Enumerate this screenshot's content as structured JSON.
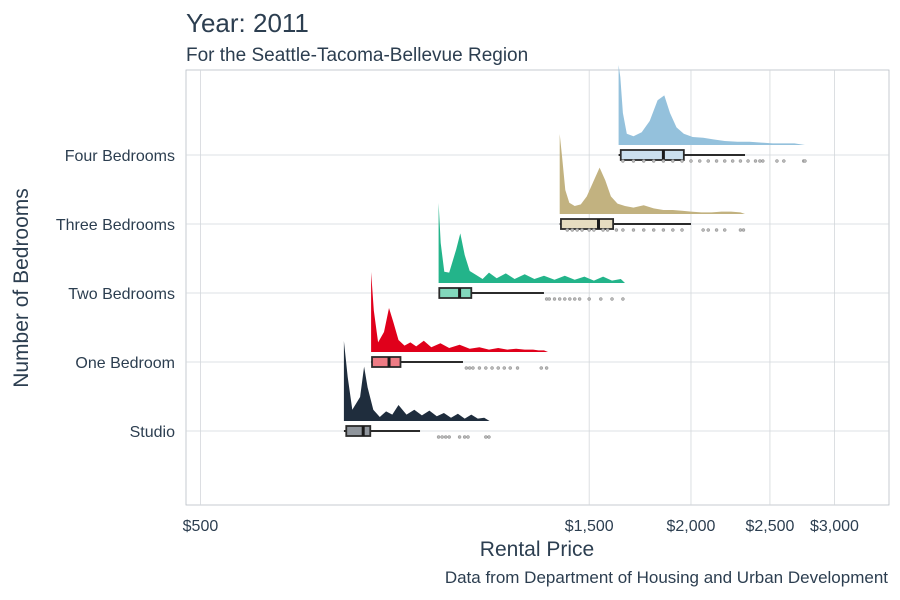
{
  "chart_data": {
    "type": "raincloud",
    "title": "Year: 2011",
    "subtitle": "For the Seattle-Tacoma-Bellevue Region",
    "caption": "Data from Department of Housing and Urban Development",
    "xlabel": "Rental Price",
    "ylabel": "Number of Bedrooms",
    "x_scale": "log10",
    "xlim": [
      480,
      3500
    ],
    "x_ticks": [
      500,
      1500,
      2000,
      2500,
      3000
    ],
    "x_tick_labels": [
      "$500",
      "$1,500",
      "$2,000",
      "$2,500",
      "$3,000"
    ],
    "grid": true,
    "categories": [
      "Studio",
      "One Bedroom",
      "Two Bedrooms",
      "Three Bedrooms",
      "Four Bedrooms"
    ],
    "series": [
      {
        "category": "Studio",
        "color": "#1f2d3d",
        "box_fill": "#8f959c",
        "min": 750,
        "q1": 755,
        "median": 792,
        "q3": 808,
        "max": 930,
        "outliers": [
          980,
          990,
          1000,
          1010,
          1040,
          1055,
          1065,
          1120,
          1130
        ],
        "density_x": [
          750,
          750,
          758,
          768,
          785,
          794,
          802,
          815,
          830,
          845,
          860,
          875,
          895,
          915,
          935,
          955,
          975,
          995,
          1015,
          1035,
          1055,
          1075,
          1095,
          1115,
          1132
        ],
        "density_y": [
          0.0,
          1.0,
          0.55,
          0.14,
          0.3,
          0.68,
          0.42,
          0.14,
          0.05,
          0.12,
          0.08,
          0.2,
          0.08,
          0.14,
          0.07,
          0.13,
          0.06,
          0.1,
          0.04,
          0.09,
          0.03,
          0.08,
          0.03,
          0.04,
          0.0
        ]
      },
      {
        "category": "One Bedroom",
        "color": "#e0001b",
        "box_fill": "#ee7c85",
        "min": 810,
        "q1": 812,
        "median": 852,
        "q3": 880,
        "max": 1050,
        "outliers": [
          1060,
          1070,
          1080,
          1100,
          1120,
          1140,
          1160,
          1180,
          1200,
          1225,
          1310,
          1330
        ],
        "density_x": [
          810,
          810,
          816,
          826,
          840,
          852,
          862,
          875,
          890,
          905,
          920,
          940,
          960,
          985,
          1010,
          1040,
          1070,
          1100,
          1130,
          1160,
          1190,
          1220,
          1250,
          1280,
          1300,
          1320,
          1335
        ],
        "density_y": [
          0.0,
          1.0,
          0.52,
          0.12,
          0.25,
          0.55,
          0.38,
          0.15,
          0.08,
          0.12,
          0.07,
          0.14,
          0.06,
          0.11,
          0.05,
          0.09,
          0.04,
          0.06,
          0.03,
          0.05,
          0.03,
          0.04,
          0.03,
          0.03,
          0.02,
          0.02,
          0.0
        ]
      },
      {
        "category": "Two Bedrooms",
        "color": "#23b48a",
        "box_fill": "#82d8bc",
        "min": 980,
        "q1": 982,
        "median": 1040,
        "q3": 1075,
        "max": 1320,
        "outliers": [
          1330,
          1340,
          1360,
          1380,
          1400,
          1420,
          1440,
          1460,
          1500,
          1550,
          1600,
          1650
        ],
        "density_x": [
          980,
          980,
          986,
          996,
          1010,
          1030,
          1042,
          1055,
          1070,
          1090,
          1110,
          1130,
          1155,
          1185,
          1215,
          1250,
          1285,
          1320,
          1360,
          1400,
          1440,
          1480,
          1520,
          1560,
          1600,
          1640,
          1660
        ],
        "density_y": [
          0.0,
          1.0,
          0.5,
          0.14,
          0.13,
          0.42,
          0.62,
          0.35,
          0.15,
          0.1,
          0.05,
          0.13,
          0.06,
          0.12,
          0.05,
          0.11,
          0.05,
          0.09,
          0.04,
          0.09,
          0.04,
          0.08,
          0.03,
          0.08,
          0.03,
          0.05,
          0.0
        ]
      },
      {
        "category": "Three Bedrooms",
        "color": "#c2b280",
        "box_fill": "#e6dcc0",
        "min": 1380,
        "q1": 1385,
        "median": 1540,
        "q3": 1605,
        "max": 2000,
        "outliers": [
          1410,
          1430,
          1450,
          1470,
          1500,
          1520,
          1560,
          1580,
          1620,
          1650,
          1700,
          1750,
          1800,
          1850,
          1900,
          1950,
          2070,
          2100,
          2150,
          2200,
          2300,
          2320
        ],
        "density_x": [
          1380,
          1380,
          1390,
          1402,
          1418,
          1440,
          1465,
          1490,
          1520,
          1545,
          1570,
          1595,
          1625,
          1660,
          1700,
          1750,
          1800,
          1850,
          1900,
          1950,
          2000,
          2060,
          2120,
          2180,
          2240,
          2300,
          2330
        ],
        "density_y": [
          0.0,
          1.0,
          0.7,
          0.3,
          0.14,
          0.1,
          0.12,
          0.22,
          0.42,
          0.58,
          0.42,
          0.22,
          0.13,
          0.1,
          0.08,
          0.11,
          0.07,
          0.05,
          0.05,
          0.04,
          0.03,
          0.02,
          0.02,
          0.03,
          0.03,
          0.02,
          0.0
        ]
      },
      {
        "category": "Four Bedrooms",
        "color": "#94c1dc",
        "box_fill": "#cce0ee",
        "min": 1630,
        "q1": 1640,
        "median": 1850,
        "q3": 1960,
        "max": 2330,
        "outliers": [
          1650,
          1700,
          1750,
          1800,
          1850,
          1900,
          1950,
          2000,
          2050,
          2100,
          2150,
          2200,
          2250,
          2300,
          2350,
          2400,
          2430,
          2450,
          2550,
          2600,
          2750,
          2760
        ],
        "density_x": [
          1630,
          1630,
          1638,
          1650,
          1668,
          1700,
          1740,
          1780,
          1820,
          1855,
          1885,
          1920,
          1960,
          2010,
          2070,
          2130,
          2200,
          2280,
          2360,
          2440,
          2520,
          2600,
          2680,
          2760
        ],
        "density_y": [
          0.0,
          1.0,
          0.85,
          0.4,
          0.14,
          0.11,
          0.16,
          0.3,
          0.56,
          0.62,
          0.4,
          0.22,
          0.14,
          0.1,
          0.09,
          0.07,
          0.05,
          0.04,
          0.04,
          0.03,
          0.02,
          0.02,
          0.02,
          0.0
        ]
      }
    ]
  }
}
